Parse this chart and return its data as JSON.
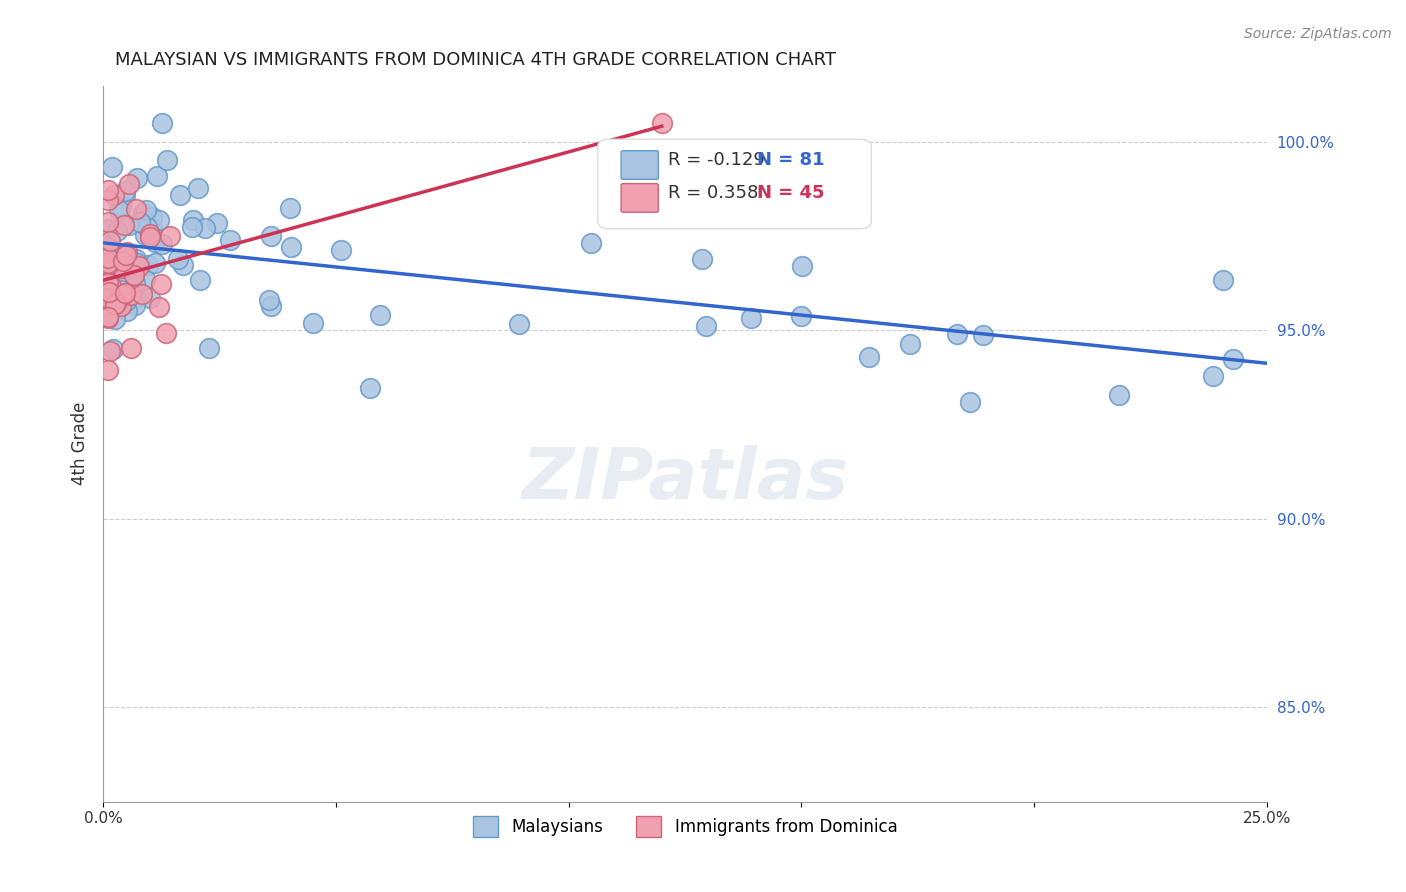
{
  "title": "MALAYSIAN VS IMMIGRANTS FROM DOMINICA 4TH GRADE CORRELATION CHART",
  "source": "Source: ZipAtlas.com",
  "ylabel": "4th Grade",
  "xmin": 0.0,
  "xmax": 0.25,
  "ymin": 0.825,
  "ymax": 1.015,
  "blue_R": -0.129,
  "blue_N": 81,
  "pink_R": 0.358,
  "pink_N": 45,
  "blue_color": "#a8c4e0",
  "blue_edge": "#6699cc",
  "pink_color": "#f0a0b0",
  "pink_edge": "#cc6677",
  "blue_line_color": "#3366cc",
  "pink_line_color": "#cc3355",
  "watermark": "ZIPatlas",
  "legend_label_blue": "Malaysians",
  "legend_label_pink": "Immigrants from Dominica"
}
